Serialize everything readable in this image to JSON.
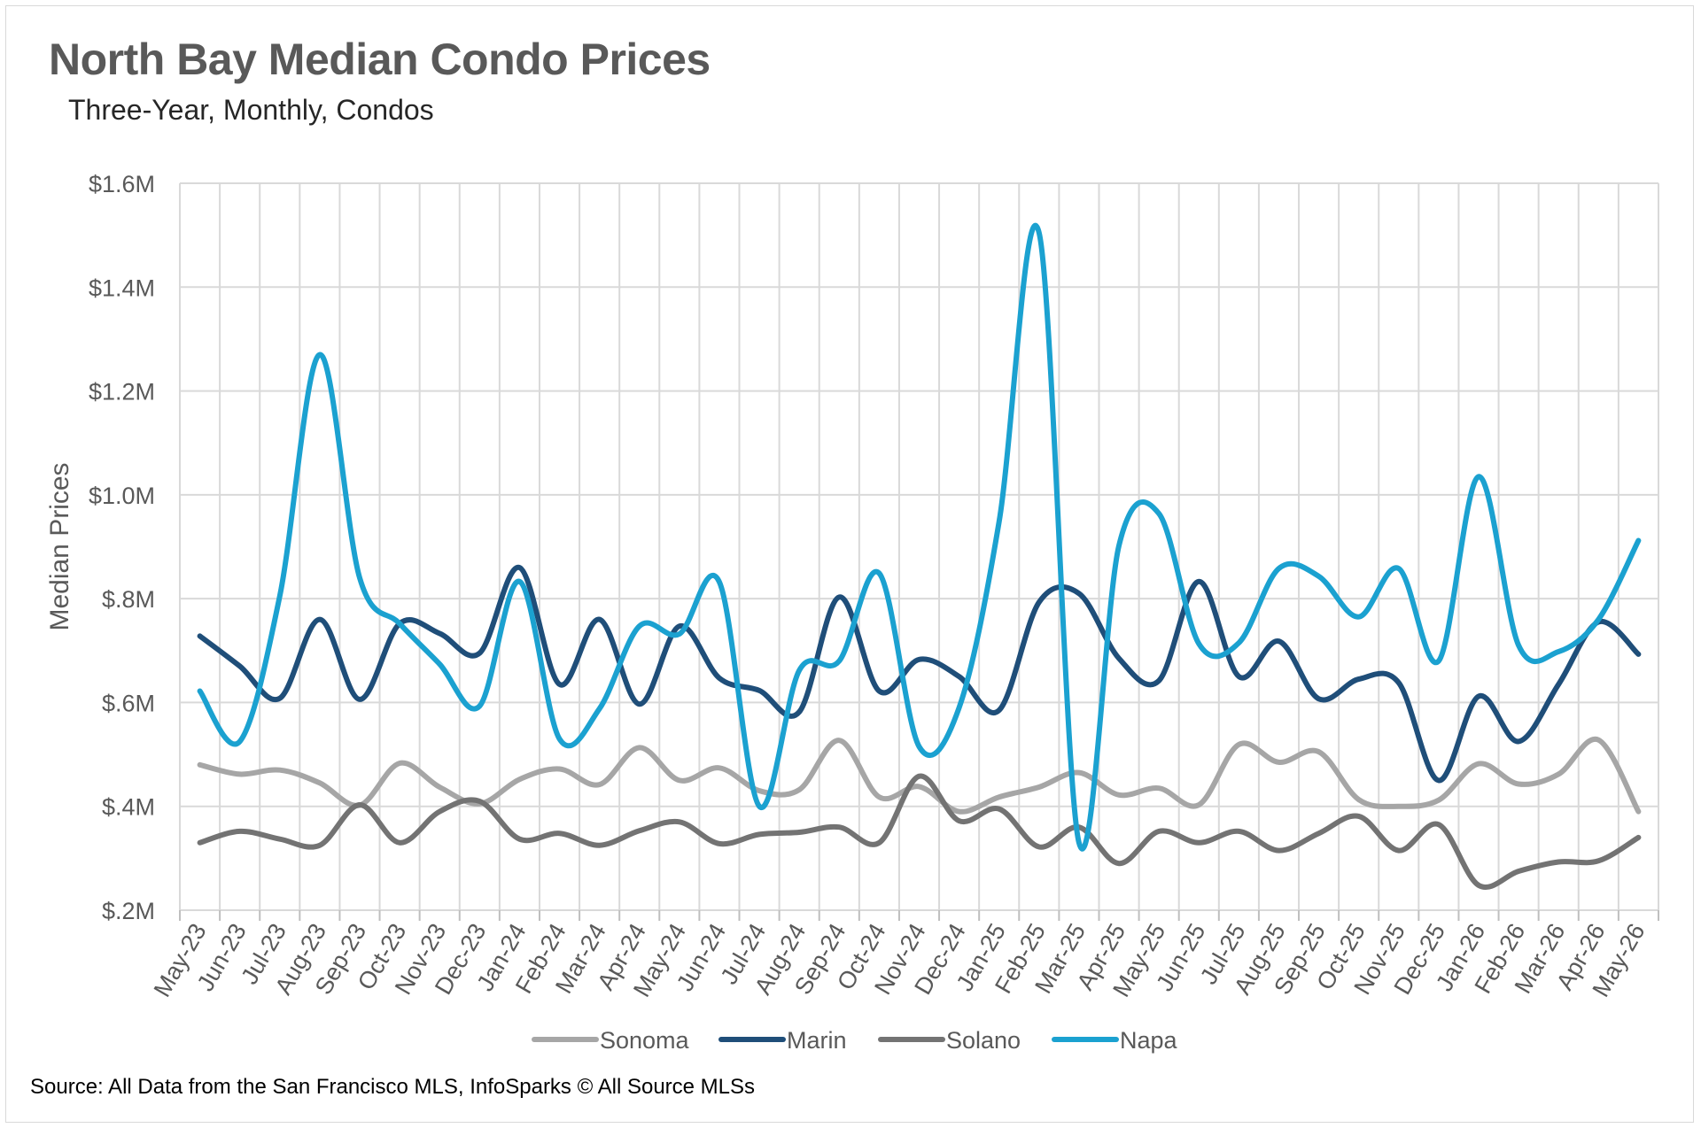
{
  "title": "North Bay Median Condo Prices",
  "subtitle": "Three-Year, Monthly, Condos",
  "source": "Source: All Data from the San Francisco MLS, InfoSparks © All Source MLSs",
  "chart_data": {
    "type": "line",
    "ylabel": "Median Prices",
    "ylim": [
      200000,
      1600000
    ],
    "yticks": [
      200000,
      400000,
      600000,
      800000,
      1000000,
      1200000,
      1400000,
      1600000
    ],
    "ytick_labels": [
      "$.2M",
      "$.4M",
      "$.6M",
      "$.8M",
      "$1.0M",
      "$1.2M",
      "$1.4M",
      "$1.6M"
    ],
    "grid": true,
    "legend_position": "bottom",
    "categories": [
      "May-23",
      "Jun-23",
      "Jul-23",
      "Aug-23",
      "Sep-23",
      "Oct-23",
      "Nov-23",
      "Dec-23",
      "Jan-24",
      "Feb-24",
      "Mar-24",
      "Apr-24",
      "May-24",
      "Jun-24",
      "Jul-24",
      "Aug-24",
      "Sep-24",
      "Oct-24",
      "Nov-24",
      "Dec-24",
      "Jan-25",
      "Feb-25",
      "Mar-25",
      "Apr-25",
      "May-25",
      "Jun-25",
      "Jul-25",
      "Aug-25",
      "Sep-25",
      "Oct-25",
      "Nov-25",
      "Dec-25",
      "Jan-26",
      "Feb-26",
      "Mar-26",
      "Apr-26",
      "May-26"
    ],
    "series": [
      {
        "name": "Sonoma",
        "color": "#a6a6a6",
        "values": [
          480000,
          462000,
          470000,
          445000,
          402000,
          483000,
          437000,
          405000,
          452000,
          472000,
          442000,
          513000,
          450000,
          474000,
          430000,
          432000,
          527000,
          418000,
          438000,
          390000,
          418000,
          437000,
          465000,
          422000,
          435000,
          403000,
          519000,
          485000,
          505000,
          413000,
          400000,
          412000,
          482000,
          443000,
          462000,
          528000,
          390000
        ]
      },
      {
        "name": "Marin",
        "color": "#1f4e79",
        "values": [
          728000,
          670000,
          608000,
          760000,
          606000,
          752000,
          733000,
          695000,
          860000,
          635000,
          760000,
          597000,
          747000,
          647000,
          623000,
          582000,
          803000,
          622000,
          683000,
          650000,
          585000,
          793000,
          810000,
          685000,
          642000,
          833000,
          650000,
          718000,
          607000,
          645000,
          638000,
          450000,
          612000,
          525000,
          635000,
          755000,
          693000
        ]
      },
      {
        "name": "Solano",
        "color": "#737373",
        "values": [
          330000,
          352000,
          337000,
          325000,
          403000,
          330000,
          390000,
          410000,
          337000,
          348000,
          325000,
          353000,
          370000,
          328000,
          346000,
          350000,
          360000,
          330000,
          458000,
          372000,
          395000,
          322000,
          360000,
          290000,
          352000,
          330000,
          352000,
          315000,
          348000,
          381000,
          315000,
          365000,
          248000,
          275000,
          293000,
          295000,
          340000
        ]
      },
      {
        "name": "Napa",
        "color": "#1ba1d0",
        "values": [
          622000,
          525000,
          805000,
          1270000,
          840000,
          752000,
          674000,
          593000,
          833000,
          530000,
          588000,
          747000,
          732000,
          832000,
          400000,
          662000,
          680000,
          849000,
          515000,
          590000,
          948000,
          1505000,
          330000,
          902000,
          964000,
          713000,
          715000,
          858000,
          843000,
          765000,
          858000,
          680000,
          1035000,
          710000,
          698000,
          760000,
          912000
        ]
      }
    ]
  }
}
